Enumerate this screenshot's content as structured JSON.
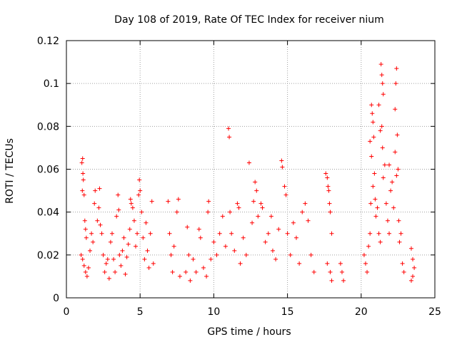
{
  "chart_data": {
    "type": "scatter",
    "title": "Day 108 of 2019, Rate Of TEC Index for receiver nium",
    "xlabel": "GPS time / hours",
    "ylabel": "ROTI / TECUs",
    "xlim": [
      0,
      25
    ],
    "ylim": [
      0,
      0.12
    ],
    "xticks": [
      0,
      5,
      10,
      15,
      20,
      25
    ],
    "yticks": [
      0,
      0.02,
      0.04,
      0.06,
      0.08,
      0.1,
      0.12
    ],
    "xtick_labels": [
      "0",
      "5",
      "10",
      "15",
      "20",
      "25"
    ],
    "ytick_labels": [
      "0",
      "0.02",
      "0.04",
      "0.06",
      "0.08",
      "0.1",
      "0.12"
    ],
    "grid": true,
    "marker": "plus",
    "series": [
      {
        "color": "#ff0000",
        "points": [
          [
            1.05,
            0.063
          ],
          [
            1.1,
            0.065
          ],
          [
            1.12,
            0.058
          ],
          [
            1.15,
            0.055
          ],
          [
            1.08,
            0.05
          ],
          [
            1.2,
            0.048
          ],
          [
            1.25,
            0.036
          ],
          [
            1.3,
            0.032
          ],
          [
            1.35,
            0.028
          ],
          [
            1.0,
            0.02
          ],
          [
            1.1,
            0.018
          ],
          [
            1.2,
            0.015
          ],
          [
            1.3,
            0.012
          ],
          [
            1.4,
            0.01
          ],
          [
            1.5,
            0.014
          ],
          [
            1.6,
            0.022
          ],
          [
            1.7,
            0.03
          ],
          [
            1.8,
            0.026
          ],
          [
            1.9,
            0.044
          ],
          [
            1.95,
            0.05
          ],
          [
            2.1,
            0.036
          ],
          [
            2.2,
            0.042
          ],
          [
            2.25,
            0.051
          ],
          [
            2.3,
            0.034
          ],
          [
            2.4,
            0.03
          ],
          [
            2.5,
            0.02
          ],
          [
            2.6,
            0.012
          ],
          [
            2.7,
            0.016
          ],
          [
            2.8,
            0.018
          ],
          [
            2.9,
            0.009
          ],
          [
            3.0,
            0.026
          ],
          [
            3.1,
            0.03
          ],
          [
            3.2,
            0.018
          ],
          [
            3.3,
            0.012
          ],
          [
            3.4,
            0.038
          ],
          [
            3.5,
            0.048
          ],
          [
            3.55,
            0.041
          ],
          [
            3.6,
            0.02
          ],
          [
            3.7,
            0.015
          ],
          [
            3.8,
            0.022
          ],
          [
            3.9,
            0.028
          ],
          [
            4.0,
            0.011
          ],
          [
            4.1,
            0.019
          ],
          [
            4.2,
            0.025
          ],
          [
            4.3,
            0.032
          ],
          [
            4.35,
            0.046
          ],
          [
            4.4,
            0.044
          ],
          [
            4.5,
            0.042
          ],
          [
            4.6,
            0.036
          ],
          [
            4.7,
            0.024
          ],
          [
            4.8,
            0.03
          ],
          [
            4.9,
            0.048
          ],
          [
            4.95,
            0.055
          ],
          [
            5.0,
            0.05
          ],
          [
            5.1,
            0.04
          ],
          [
            5.2,
            0.028
          ],
          [
            5.3,
            0.018
          ],
          [
            5.4,
            0.035
          ],
          [
            5.5,
            0.022
          ],
          [
            5.6,
            0.014
          ],
          [
            5.7,
            0.03
          ],
          [
            5.8,
            0.045
          ],
          [
            5.9,
            0.016
          ],
          [
            6.9,
            0.045
          ],
          [
            7.0,
            0.03
          ],
          [
            7.1,
            0.02
          ],
          [
            7.2,
            0.012
          ],
          [
            7.3,
            0.024
          ],
          [
            7.5,
            0.04
          ],
          [
            7.6,
            0.046
          ],
          [
            7.7,
            0.01
          ],
          [
            8.1,
            0.012
          ],
          [
            8.2,
            0.033
          ],
          [
            8.3,
            0.02
          ],
          [
            8.4,
            0.008
          ],
          [
            8.6,
            0.018
          ],
          [
            8.8,
            0.012
          ],
          [
            9.0,
            0.032
          ],
          [
            9.1,
            0.028
          ],
          [
            9.3,
            0.014
          ],
          [
            9.5,
            0.01
          ],
          [
            9.6,
            0.04
          ],
          [
            9.65,
            0.045
          ],
          [
            9.8,
            0.018
          ],
          [
            10.0,
            0.026
          ],
          [
            10.2,
            0.02
          ],
          [
            10.4,
            0.03
          ],
          [
            10.6,
            0.038
          ],
          [
            10.8,
            0.024
          ],
          [
            11.0,
            0.079
          ],
          [
            11.05,
            0.075
          ],
          [
            11.1,
            0.04
          ],
          [
            11.2,
            0.03
          ],
          [
            11.4,
            0.022
          ],
          [
            11.6,
            0.044
          ],
          [
            11.7,
            0.042
          ],
          [
            11.8,
            0.016
          ],
          [
            12.0,
            0.028
          ],
          [
            12.2,
            0.02
          ],
          [
            12.4,
            0.063
          ],
          [
            12.6,
            0.035
          ],
          [
            12.7,
            0.045
          ],
          [
            12.8,
            0.054
          ],
          [
            12.9,
            0.05
          ],
          [
            13.0,
            0.038
          ],
          [
            13.2,
            0.044
          ],
          [
            13.3,
            0.042
          ],
          [
            13.5,
            0.026
          ],
          [
            13.7,
            0.03
          ],
          [
            13.9,
            0.038
          ],
          [
            14.0,
            0.022
          ],
          [
            14.2,
            0.018
          ],
          [
            14.4,
            0.032
          ],
          [
            14.6,
            0.064
          ],
          [
            14.65,
            0.061
          ],
          [
            14.8,
            0.052
          ],
          [
            14.9,
            0.048
          ],
          [
            15.0,
            0.03
          ],
          [
            15.2,
            0.02
          ],
          [
            15.4,
            0.035
          ],
          [
            15.6,
            0.028
          ],
          [
            15.8,
            0.016
          ],
          [
            16.0,
            0.04
          ],
          [
            16.2,
            0.044
          ],
          [
            16.4,
            0.036
          ],
          [
            16.6,
            0.02
          ],
          [
            16.8,
            0.012
          ],
          [
            17.6,
            0.058
          ],
          [
            17.7,
            0.056
          ],
          [
            17.75,
            0.052
          ],
          [
            17.8,
            0.05
          ],
          [
            17.85,
            0.044
          ],
          [
            17.9,
            0.04
          ],
          [
            18.0,
            0.03
          ],
          [
            17.7,
            0.016
          ],
          [
            17.9,
            0.012
          ],
          [
            18.0,
            0.008
          ],
          [
            18.6,
            0.016
          ],
          [
            18.7,
            0.012
          ],
          [
            18.8,
            0.008
          ],
          [
            20.2,
            0.02
          ],
          [
            20.3,
            0.016
          ],
          [
            20.4,
            0.012
          ],
          [
            20.5,
            0.024
          ],
          [
            20.6,
            0.03
          ],
          [
            20.65,
            0.044
          ],
          [
            20.7,
            0.09
          ],
          [
            20.75,
            0.086
          ],
          [
            20.8,
            0.082
          ],
          [
            20.6,
            0.073
          ],
          [
            20.7,
            0.066
          ],
          [
            20.8,
            0.052
          ],
          [
            20.9,
            0.058
          ],
          [
            20.95,
            0.046
          ],
          [
            21.0,
            0.038
          ],
          [
            21.1,
            0.042
          ],
          [
            21.2,
            0.03
          ],
          [
            21.3,
            0.026
          ],
          [
            21.35,
            0.109
          ],
          [
            21.4,
            0.104
          ],
          [
            21.45,
            0.1
          ],
          [
            21.5,
            0.095
          ],
          [
            21.4,
            0.08
          ],
          [
            21.45,
            0.07
          ],
          [
            21.5,
            0.056
          ],
          [
            21.6,
            0.062
          ],
          [
            21.7,
            0.044
          ],
          [
            21.8,
            0.036
          ],
          [
            21.9,
            0.03
          ],
          [
            22.0,
            0.05
          ],
          [
            22.1,
            0.054
          ],
          [
            22.2,
            0.042
          ],
          [
            22.3,
            0.088
          ],
          [
            22.35,
            0.1
          ],
          [
            22.4,
            0.107
          ],
          [
            22.45,
            0.076
          ],
          [
            22.5,
            0.06
          ],
          [
            22.55,
            0.036
          ],
          [
            22.6,
            0.026
          ],
          [
            22.7,
            0.03
          ],
          [
            22.8,
            0.016
          ],
          [
            22.9,
            0.012
          ],
          [
            23.4,
            0.023
          ],
          [
            23.5,
            0.018
          ],
          [
            23.6,
            0.014
          ],
          [
            23.5,
            0.01
          ],
          [
            23.4,
            0.008
          ],
          [
            22.3,
            0.068
          ],
          [
            22.4,
            0.057
          ],
          [
            21.9,
            0.062
          ],
          [
            20.85,
            0.075
          ],
          [
            21.2,
            0.09
          ],
          [
            21.3,
            0.078
          ]
        ]
      }
    ]
  }
}
